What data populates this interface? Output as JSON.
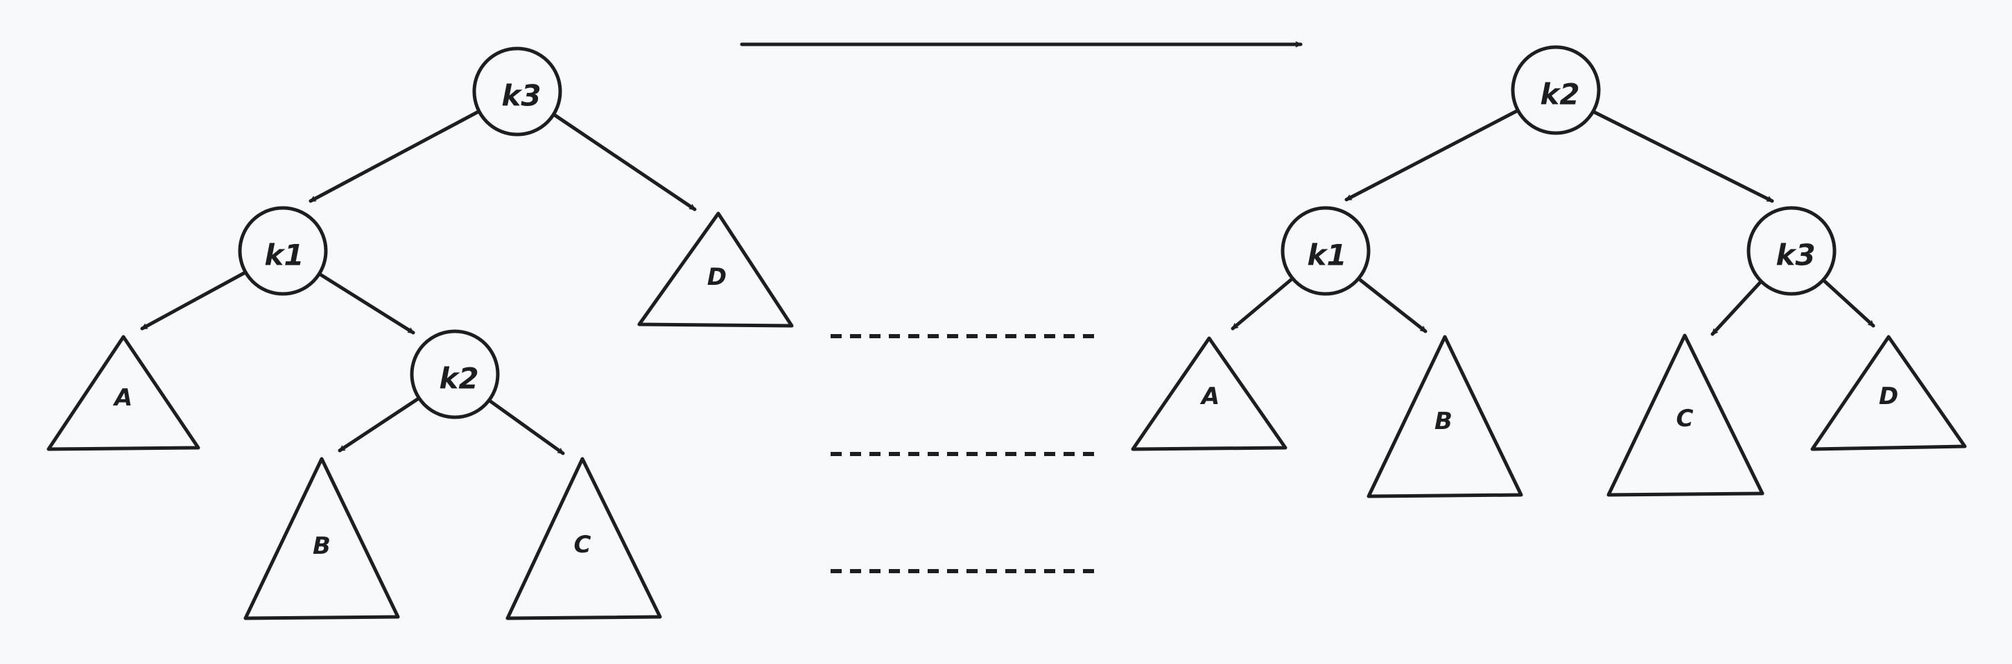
{
  "left_tree": {
    "nodes": [
      {
        "id": "k3",
        "label": "k3"
      },
      {
        "id": "k1",
        "label": "k1"
      },
      {
        "id": "k2",
        "label": "k2"
      }
    ],
    "subtrees": [
      {
        "id": "A",
        "label": "A"
      },
      {
        "id": "B",
        "label": "B"
      },
      {
        "id": "C",
        "label": "C"
      },
      {
        "id": "D",
        "label": "D"
      }
    ]
  },
  "right_tree": {
    "nodes": [
      {
        "id": "k2",
        "label": "k2"
      },
      {
        "id": "k1",
        "label": "k1"
      },
      {
        "id": "k3",
        "label": "k3"
      }
    ],
    "subtrees": [
      {
        "id": "A",
        "label": "A"
      },
      {
        "id": "B",
        "label": "B"
      },
      {
        "id": "C",
        "label": "C"
      },
      {
        "id": "D",
        "label": "D"
      }
    ]
  },
  "colors": {
    "stroke": "#1e1e1e",
    "background": "#f8f9fb"
  }
}
